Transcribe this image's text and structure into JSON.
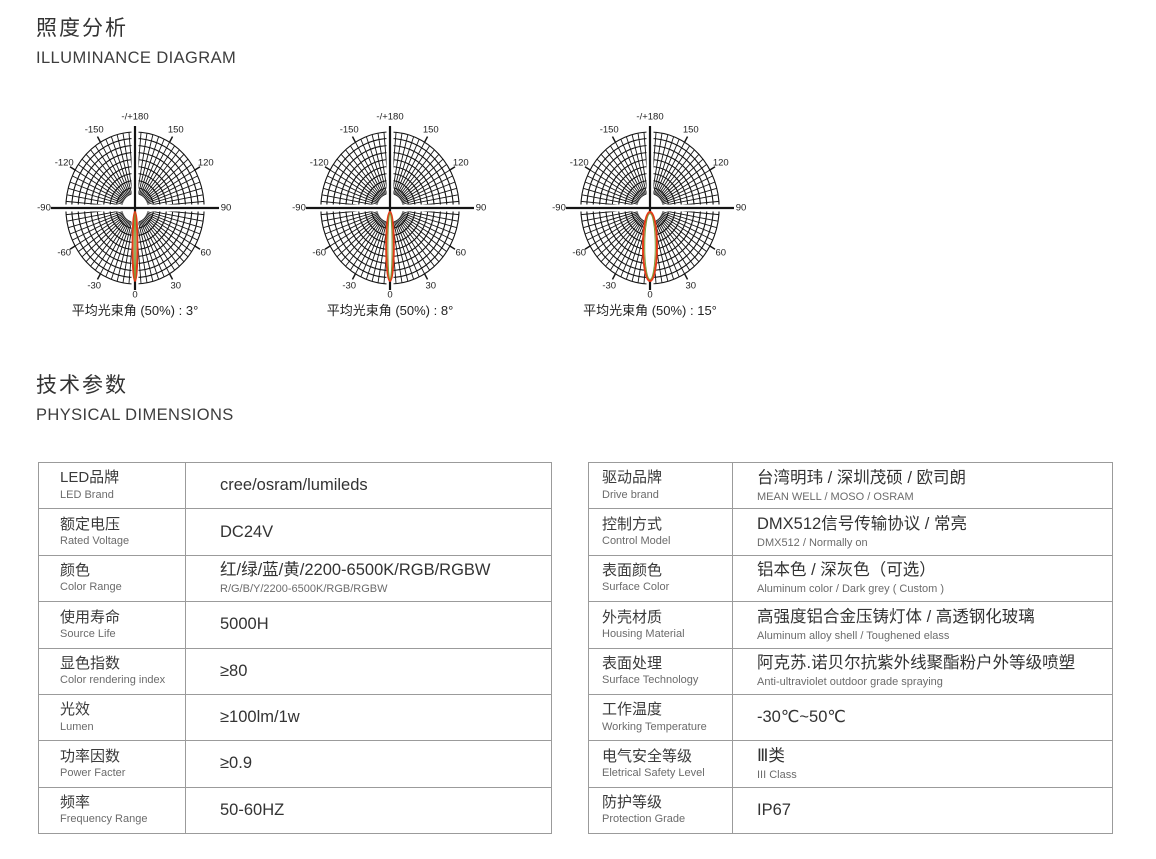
{
  "sections": {
    "illuminance": {
      "title_cn": "照度分析",
      "title_en": "ILLUMINANCE DIAGRAM"
    },
    "parameters": {
      "title_cn": "技术参数",
      "title_en": "PHYSICAL DIMENSIONS"
    }
  },
  "diagrams": {
    "type": "polar-beam-diagram",
    "angle_labels": [
      {
        "a": 0,
        "t": "0"
      },
      {
        "a": 30,
        "t": "30"
      },
      {
        "a": 60,
        "t": "60"
      },
      {
        "a": 90,
        "t": "90"
      },
      {
        "a": 120,
        "t": "120"
      },
      {
        "a": 150,
        "t": "150"
      },
      {
        "a": 180,
        "t": "-/+180"
      },
      {
        "a": -150,
        "t": "-150"
      },
      {
        "a": -120,
        "t": "-120"
      },
      {
        "a": -90,
        "t": "-90"
      },
      {
        "a": -60,
        "t": "-60"
      },
      {
        "a": -30,
        "t": "-30"
      }
    ],
    "beam_color_red": "#e23a18",
    "beam_color_green": "#7d9b35",
    "grid_color": "#141414",
    "items": [
      {
        "caption": "平均光束角 (50%) : 3°",
        "beam_angle_deg": 3
      },
      {
        "caption": "平均光束角 (50%) : 8°",
        "beam_angle_deg": 8
      },
      {
        "caption": "平均光束角 (50%) : 15°",
        "beam_angle_deg": 15
      }
    ]
  },
  "tables": {
    "left": {
      "rows": [
        {
          "label_cn": "LED品牌",
          "label_en": "LED Brand",
          "value": "cree/osram/lumileds"
        },
        {
          "label_cn": "额定电压",
          "label_en": "Rated Voltage",
          "value": "DC24V"
        },
        {
          "label_cn": "颜色",
          "label_en": "Color Range",
          "value": "红/绿/蓝/黄/2200-6500K/RGB/RGBW",
          "value_sub": "R/G/B/Y/2200-6500K/RGB/RGBW"
        },
        {
          "label_cn": "使用寿命",
          "label_en": "Source Life",
          "value": "5000H"
        },
        {
          "label_cn": "显色指数",
          "label_en": "Color rendering index",
          "value": "≥80"
        },
        {
          "label_cn": "光效",
          "label_en": "Lumen",
          "value": "≥100lm/1w"
        },
        {
          "label_cn": "功率因数",
          "label_en": "Power Facter",
          "value": "≥0.9"
        },
        {
          "label_cn": "频率",
          "label_en": "Frequency Range",
          "value": "50-60HZ"
        }
      ]
    },
    "right": {
      "rows": [
        {
          "label_cn": "驱动品牌",
          "label_en": "Drive brand",
          "value": "台湾明玮 / 深圳茂硕 / 欧司朗",
          "value_sub": "MEAN WELL / MOSO / OSRAM"
        },
        {
          "label_cn": "控制方式",
          "label_en": "Control Model",
          "value": "DMX512信号传输协议 / 常亮",
          "value_sub": "DMX512 / Normally on"
        },
        {
          "label_cn": "表面颜色",
          "label_en": "Surface Color",
          "value": "铝本色 / 深灰色（可选）",
          "value_sub": "Aluminum color / Dark grey ( Custom )"
        },
        {
          "label_cn": "外壳材质",
          "label_en": "Housing Material",
          "value": "高强度铝合金压铸灯体 / 高透钢化玻璃",
          "value_sub": "Aluminum alloy shell / Toughened elass"
        },
        {
          "label_cn": "表面处理",
          "label_en": "Surface Technology",
          "value": "阿克苏.诺贝尔抗紫外线聚酯粉户外等级喷塑",
          "value_sub": "Anti-ultraviolet outdoor grade spraying"
        },
        {
          "label_cn": "工作温度",
          "label_en": "Working Temperature",
          "value": "-30℃~50℃"
        },
        {
          "label_cn": "电气安全等级",
          "label_en": "Eletrical Safety Level",
          "value": "Ⅲ类",
          "value_sub": "III Class"
        },
        {
          "label_cn": "防护等级",
          "label_en": "Protection Grade",
          "value": "IP67"
        }
      ]
    }
  }
}
